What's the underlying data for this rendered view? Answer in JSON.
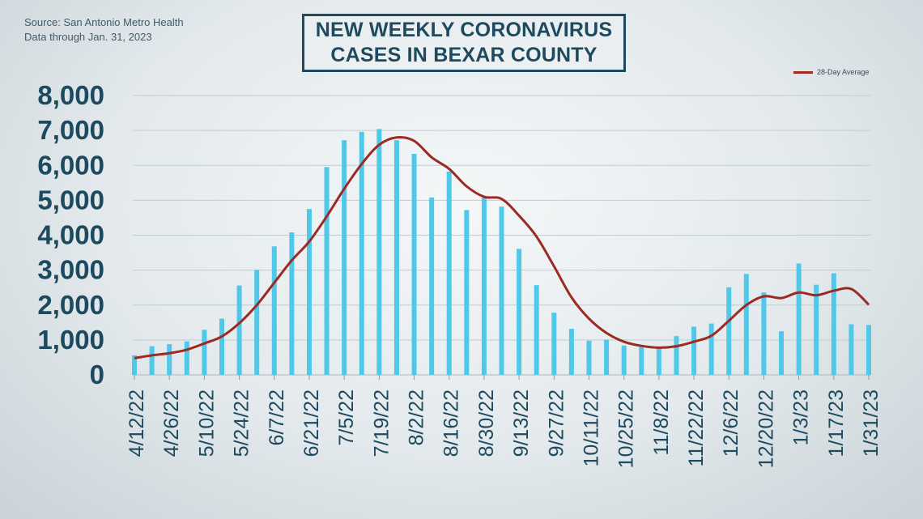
{
  "source_lines": [
    "Source: San Antonio Metro Health",
    "Data through Jan. 31, 2023"
  ],
  "title_lines": [
    "NEW WEEKLY CORONAVIRUS",
    "CASES IN BEXAR COUNTY"
  ],
  "colors": {
    "bar": "#4fc8ea",
    "line": "#9c2a22",
    "axis_text": "#1d4a5e",
    "grid": "#c2ccd1"
  },
  "chart_data": {
    "type": "bar",
    "x_tick_labels": [
      "4/12/22",
      "4/26/22",
      "5/10/22",
      "5/24/22",
      "6/7/22",
      "6/21/22",
      "7/5/22",
      "7/19/22",
      "8/2/22",
      "8/16/22",
      "8/30/22",
      "9/13/22",
      "9/27/22",
      "10/11/22",
      "10/25/22",
      "11/8/22",
      "11/22/22",
      "12/6/22",
      "12/20/22",
      "1/3/23",
      "1/17/23",
      "1/31/23"
    ],
    "categories": [
      "4/12/22",
      "4/19/22",
      "4/26/22",
      "5/3/22",
      "5/10/22",
      "5/17/22",
      "5/24/22",
      "5/31/22",
      "6/7/22",
      "6/14/22",
      "6/21/22",
      "6/28/22",
      "7/5/22",
      "7/12/22",
      "7/19/22",
      "7/26/22",
      "8/2/22",
      "8/9/22",
      "8/16/22",
      "8/23/22",
      "8/30/22",
      "9/6/22",
      "9/13/22",
      "9/20/22",
      "9/27/22",
      "10/4/22",
      "10/11/22",
      "10/18/22",
      "10/25/22",
      "11/1/22",
      "11/8/22",
      "11/15/22",
      "11/22/22",
      "11/29/22",
      "12/6/22",
      "12/13/22",
      "12/20/22",
      "12/27/22",
      "1/3/23",
      "1/10/23",
      "1/17/23",
      "1/24/23",
      "1/31/23"
    ],
    "ylim": [
      0,
      8000
    ],
    "y_ticks": [
      0,
      1000,
      2000,
      3000,
      4000,
      5000,
      6000,
      7000,
      8000
    ],
    "y_tick_labels": [
      "0",
      "1,000",
      "2,000",
      "3,000",
      "4,000",
      "5,000",
      "6,000",
      "7,000",
      "8,000"
    ],
    "grid": true,
    "legend_position": "top-right",
    "series": [
      {
        "type": "bar",
        "values": [
          560,
          820,
          880,
          960,
          1290,
          1610,
          2560,
          3010,
          3680,
          4080,
          4750,
          5950,
          6720,
          6960,
          7040,
          6720,
          6330,
          5080,
          5820,
          4720,
          5080,
          4820,
          3610,
          2570,
          1780,
          1320,
          980,
          1010,
          840,
          800,
          800,
          1110,
          1380,
          1470,
          2510,
          2890,
          2360,
          1250,
          3190,
          2580,
          2910,
          1450,
          1430
        ]
      },
      {
        "name": "28-Day Average",
        "type": "line",
        "values": [
          480,
          560,
          620,
          720,
          900,
          1100,
          1480,
          2000,
          2640,
          3280,
          3820,
          4540,
          5330,
          6040,
          6590,
          6800,
          6700,
          6230,
          5900,
          5400,
          5100,
          5040,
          4560,
          3960,
          3110,
          2220,
          1610,
          1200,
          950,
          830,
          780,
          820,
          950,
          1120,
          1550,
          2000,
          2250,
          2200,
          2360,
          2280,
          2410,
          2460,
          2010
        ]
      }
    ]
  }
}
